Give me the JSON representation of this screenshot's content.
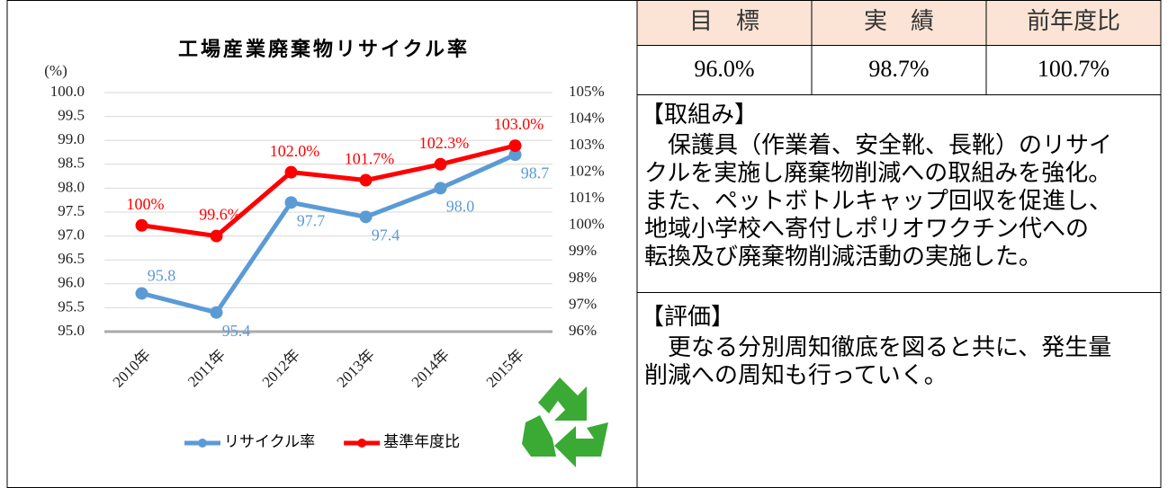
{
  "chart_data": {
    "type": "line",
    "title": "工場産業廃棄物リサイクル率",
    "y_unit": "(%)",
    "categories": [
      "2010年",
      "2011年",
      "2012年",
      "2013年",
      "2014年",
      "2015年"
    ],
    "series": [
      {
        "name": "リサイクル率",
        "color": "#5b9bd5",
        "values": [
          95.8,
          95.4,
          97.7,
          97.4,
          98.0,
          98.7
        ],
        "value_labels": [
          "95.8",
          "95.4",
          "97.7",
          "97.4",
          "98.0",
          "98.7"
        ]
      },
      {
        "name": "基準年度比",
        "color": "#ff0000",
        "axis": "y2",
        "values": [
          100,
          99.6,
          102.0,
          101.7,
          102.3,
          103.0
        ],
        "value_labels": [
          "100%",
          "99.6%",
          "102.0%",
          "101.7%",
          "102.3%",
          "103.0%"
        ]
      }
    ],
    "ylim": [
      95,
      100
    ],
    "yticks": [
      {
        "value": 95,
        "label": "95.0"
      },
      95.5,
      {
        "value": 96,
        "label": "96.0"
      },
      96.5,
      {
        "value": 97,
        "label": "97.0"
      },
      97.5,
      {
        "value": 98,
        "label": "98.0"
      },
      98.5,
      {
        "value": 99,
        "label": "99.0"
      },
      99.5,
      {
        "value": 100,
        "label": "100.0"
      }
    ],
    "y2lim": [
      96,
      105
    ],
    "y2ticks": [
      {
        "value": 96,
        "label": "96%"
      },
      {
        "value": 97,
        "label": "97%"
      },
      {
        "value": 98,
        "label": "98%"
      },
      {
        "value": 99,
        "label": "99%"
      },
      {
        "value": 100,
        "label": "100%"
      },
      {
        "value": 101,
        "label": "101%"
      },
      {
        "value": 102,
        "label": "102%"
      },
      {
        "value": 103,
        "label": "103%"
      },
      {
        "value": 104,
        "label": "104%"
      },
      {
        "value": 105,
        "label": "105%"
      }
    ],
    "grid": true,
    "legend": "bottom"
  },
  "table": {
    "header": [
      "目　標",
      "実　績",
      "前年度比"
    ],
    "rows": [
      [
        "96.0%",
        "98.7%",
        "100.7%"
      ]
    ]
  },
  "sections": [
    {
      "heading": "【取組み】",
      "lines": [
        "　保護具（作業着、安全靴、長靴）のリサイ",
        "クルを実施し廃棄物削減への取組みを強化。",
        "また、ペットボトルキャップ回収を促進し、",
        "地域小学校へ寄付しポリオワクチン代への",
        "転換及び廃棄物削減活動の実施した。"
      ]
    },
    {
      "heading": "【評価】",
      "lines": [
        "　更なる分別周知徹底を図ると共に、発生量",
        "削減への周知も行っていく。"
      ]
    }
  ]
}
